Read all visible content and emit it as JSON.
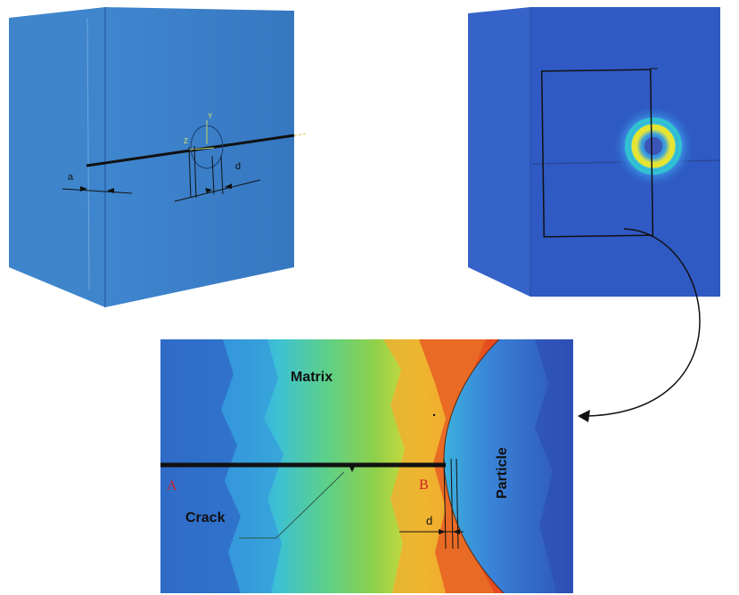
{
  "left_model": {
    "dimension_a": "a",
    "dimension_d": "d",
    "axis_y": "Y",
    "axis_z": "Z"
  },
  "detail": {
    "matrix_label": "Matrix",
    "particle_label": "Particle",
    "crack_label": "Crack",
    "point_a": "A",
    "point_b": "B",
    "distance_label": "d"
  },
  "colors": {
    "block_blue": "#3a7cc4",
    "contour_red": "#e8441c",
    "contour_orange": "#f29a28",
    "contour_yellow": "#e6e432",
    "contour_green": "#58c24a",
    "contour_cyan": "#30b8d8",
    "contour_blue": "#2f5fc0",
    "point_marker_red": "#d0202a"
  }
}
